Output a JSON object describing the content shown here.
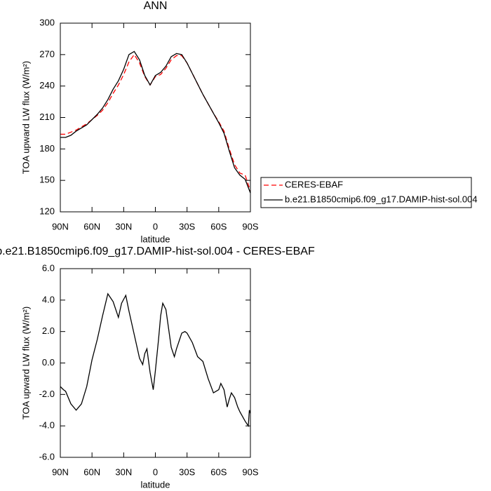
{
  "chart_data": [
    {
      "type": "line",
      "title": "ANN",
      "y_label": "TOA upward LW flux (W/m²)",
      "x_label": "latitude",
      "x": [
        90,
        85,
        80,
        75,
        70,
        65,
        60,
        55,
        50,
        45,
        40,
        35,
        30,
        25,
        20,
        15,
        10,
        5,
        0,
        -5,
        -10,
        -15,
        -20,
        -25,
        -30,
        -35,
        -40,
        -45,
        -50,
        -55,
        -60,
        -65,
        -70,
        -75,
        -80,
        -85,
        -90
      ],
      "series": [
        {
          "name": "CERES-EBAF",
          "color": "#ff0000",
          "style": "dashed",
          "values": [
            194,
            194,
            196,
            198,
            201,
            204,
            208,
            212,
            217,
            224,
            233,
            241,
            251,
            263,
            270,
            262,
            249,
            241,
            249,
            251,
            257,
            265,
            269,
            269,
            262,
            252,
            242,
            232,
            223,
            214,
            206,
            197,
            180,
            165,
            157,
            155,
            140
          ]
        },
        {
          "name": "b.e21.B1850cmip6.f09_g17.DAMIP-hist-sol.004",
          "color": "#000000",
          "style": "solid",
          "values": [
            191,
            191,
            193,
            197,
            200,
            203,
            208,
            213,
            219,
            227,
            237,
            245,
            256,
            270,
            273,
            265,
            250,
            241,
            250,
            253,
            259,
            268,
            271,
            270,
            262,
            252,
            242,
            232,
            223,
            214,
            205,
            195,
            178,
            162,
            155,
            151,
            138
          ]
        }
      ],
      "xlim": [
        90,
        -90
      ],
      "xticks": [
        {
          "value": 90,
          "label": "90N"
        },
        {
          "value": 60,
          "label": "60N"
        },
        {
          "value": 30,
          "label": "30N"
        },
        0,
        {
          "value": -30,
          "label": "30S"
        },
        {
          "value": -60,
          "label": "60S"
        },
        {
          "value": -90,
          "label": "90S"
        }
      ],
      "ylim": [
        120,
        300
      ],
      "yticks": [
        120,
        150,
        180,
        210,
        240,
        270,
        300
      ],
      "legend": "right"
    },
    {
      "type": "line",
      "title": "b.e21.B1850cmip6.f09_g17.DAMIP-hist-sol.004 - CERES-EBAF",
      "y_label": "TOA upward LW flux (W/m²)",
      "x_label": "latitude",
      "x": [
        90,
        87,
        85,
        80,
        75,
        70,
        65,
        60,
        55,
        50,
        45,
        40,
        35,
        32,
        28,
        25,
        20,
        15,
        12,
        10,
        8,
        5,
        2,
        0,
        -3,
        -5,
        -7,
        -10,
        -15,
        -18,
        -20,
        -25,
        -28,
        -30,
        -35,
        -40,
        -45,
        -50,
        -55,
        -60,
        -62,
        -65,
        -68,
        -70,
        -72,
        -75,
        -78,
        -80,
        -85,
        -88,
        -89,
        -90
      ],
      "values": [
        -1.5,
        -1.7,
        -1.8,
        -2.6,
        -3.0,
        -2.6,
        -1.5,
        0.2,
        1.5,
        3.0,
        4.4,
        3.9,
        2.9,
        3.8,
        4.3,
        3.3,
        1.8,
        0.3,
        -0.1,
        0.6,
        0.9,
        -0.6,
        -1.7,
        -0.5,
        1.5,
        3.0,
        3.8,
        3.4,
        1.0,
        0.4,
        0.9,
        1.9,
        2.0,
        1.9,
        1.3,
        0.4,
        0.1,
        -1.0,
        -1.9,
        -1.7,
        -1.3,
        -1.7,
        -2.8,
        -2.3,
        -1.9,
        -2.2,
        -2.8,
        -3.1,
        -3.7,
        -4.0,
        -3.0,
        -3.2
      ],
      "color": "#000000",
      "xlim": [
        90,
        -90
      ],
      "xticks": [
        {
          "value": 90,
          "label": "90N"
        },
        {
          "value": 60,
          "label": "60N"
        },
        {
          "value": 30,
          "label": "30N"
        },
        0,
        {
          "value": -30,
          "label": "30S"
        },
        {
          "value": -60,
          "label": "60S"
        },
        {
          "value": -90,
          "label": "90S"
        }
      ],
      "ylim": [
        -6,
        6
      ],
      "yticks": [
        {
          "value": -6,
          "label": "-6.0"
        },
        {
          "value": -4,
          "label": "-4.0"
        },
        {
          "value": -2,
          "label": "-2.0"
        },
        {
          "value": 0,
          "label": "0.0"
        },
        {
          "value": 2,
          "label": "2.0"
        },
        {
          "value": 4,
          "label": "4.0"
        },
        {
          "value": 6,
          "label": "6.0"
        }
      ]
    }
  ]
}
